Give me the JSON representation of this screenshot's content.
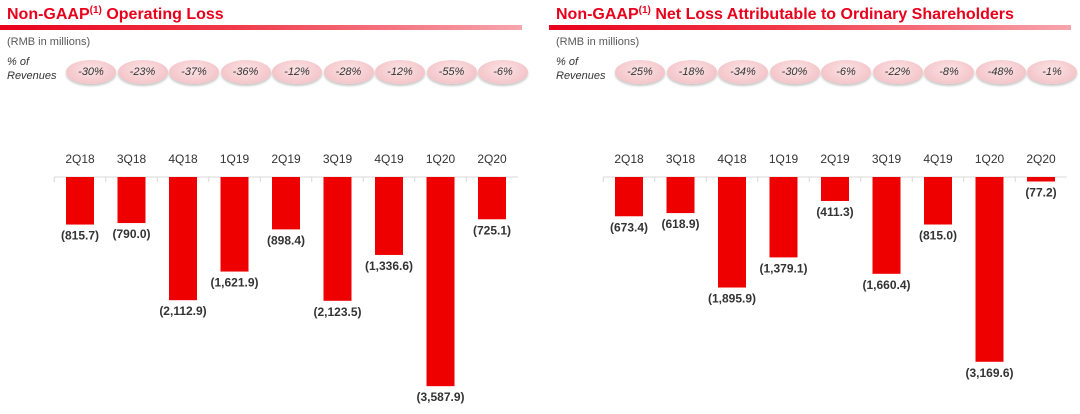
{
  "chart_data": [
    {
      "type": "bar",
      "title": "Non-GAAP",
      "title_sup": "(1)",
      "title_rest": " Operating Loss",
      "units": "(RMB in millions)",
      "pct_label": [
        "% of",
        "Revenues"
      ],
      "categories": [
        "2Q18",
        "3Q18",
        "4Q18",
        "1Q19",
        "2Q19",
        "3Q19",
        "4Q19",
        "1Q20",
        "2Q20"
      ],
      "values": [
        -815.7,
        -790.0,
        -2112.9,
        -1621.9,
        -898.4,
        -2123.5,
        -1336.6,
        -3587.9,
        -725.1
      ],
      "value_labels": [
        "(815.7)",
        "(790.0)",
        "(2,112.9)",
        "(1,621.9)",
        "(898.4)",
        "(2,123.5)",
        "(1,336.6)",
        "(3,587.9)",
        "(725.1)"
      ],
      "pct_of_revenues": [
        "-30%",
        "-23%",
        "-37%",
        "-36%",
        "-12%",
        "-28%",
        "-12%",
        "-55%",
        "-6%"
      ],
      "bar_color": "#ee0000"
    },
    {
      "type": "bar",
      "title": "Non-GAAP",
      "title_sup": "(1)",
      "title_rest": " Net Loss Attributable to Ordinary Shareholders",
      "units": "(RMB in millions)",
      "pct_label": [
        "% of",
        "Revenues"
      ],
      "categories": [
        "2Q18",
        "3Q18",
        "4Q18",
        "1Q19",
        "2Q19",
        "3Q19",
        "4Q19",
        "1Q20",
        "2Q20"
      ],
      "values": [
        -673.4,
        -618.9,
        -1895.9,
        -1379.1,
        -411.3,
        -1660.4,
        -815.0,
        -3169.6,
        -77.2
      ],
      "value_labels": [
        "(673.4)",
        "(618.9)",
        "(1,895.9)",
        "(1,379.1)",
        "(411.3)",
        "(1,660.4)",
        "(815.0)",
        "(3,169.6)",
        "(77.2)"
      ],
      "pct_of_revenues": [
        "-25%",
        "-18%",
        "-34%",
        "-30%",
        "-6%",
        "-22%",
        "-8%",
        "-48%",
        "-1%"
      ],
      "bar_color": "#ee0000"
    }
  ]
}
